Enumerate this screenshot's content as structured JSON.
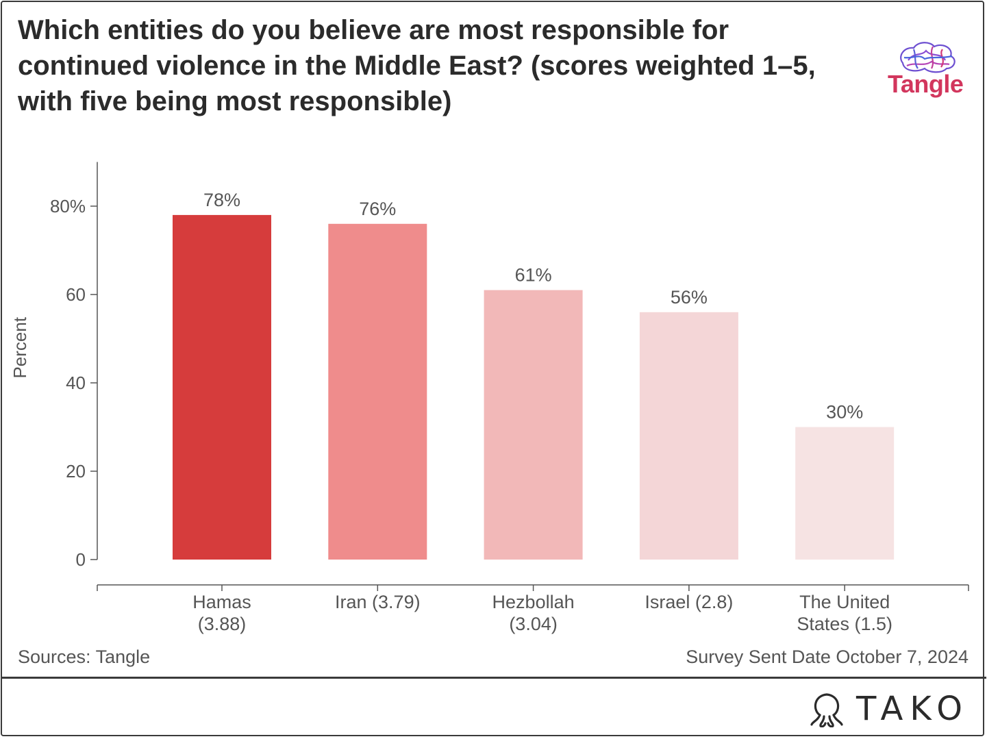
{
  "header": {
    "title": "Which entities do you believe are most responsible for continued violence in the Middle East? (scores weighted 1–5, with five being most responsible)",
    "logo_text": "Tangle"
  },
  "footer": {
    "source": "Sources: Tangle",
    "survey_date": "Survey Sent Date October 7, 2024",
    "brand": "TAKO"
  },
  "chart_data": {
    "type": "bar",
    "title": "Which entities do you believe are most responsible for continued violence in the Middle East? (scores weighted 1–5, with five being most responsible)",
    "xlabel": "",
    "ylabel": "Percent",
    "ylim": [
      0,
      90
    ],
    "yticks": [
      {
        "value": 0,
        "label": "0"
      },
      {
        "value": 20,
        "label": "20"
      },
      {
        "value": 40,
        "label": "40"
      },
      {
        "value": 60,
        "label": "60"
      },
      {
        "value": 80,
        "label": "80%"
      }
    ],
    "categories": [
      [
        "Hamas",
        "(3.88)"
      ],
      [
        "Iran (3.79)"
      ],
      [
        "Hezbollah",
        "(3.04)"
      ],
      [
        "Israel (2.8)"
      ],
      [
        "The United",
        "States (1.5)"
      ]
    ],
    "values": [
      78,
      76,
      61,
      56,
      30
    ],
    "data_labels": [
      "78%",
      "76%",
      "61%",
      "56%",
      "30%"
    ],
    "colors": [
      "#d63c3c",
      "#ef8c8c",
      "#f2b8b8",
      "#f4d6d7",
      "#f6e3e3"
    ],
    "grid": false,
    "legend": "none"
  },
  "style": {
    "text_color": "#2b2b2b",
    "axis_color": "#555555",
    "brand_accent": "#d2365d"
  },
  "icons": [
    "tangle-brain-logo-icon",
    "tako-octopus-icon"
  ]
}
